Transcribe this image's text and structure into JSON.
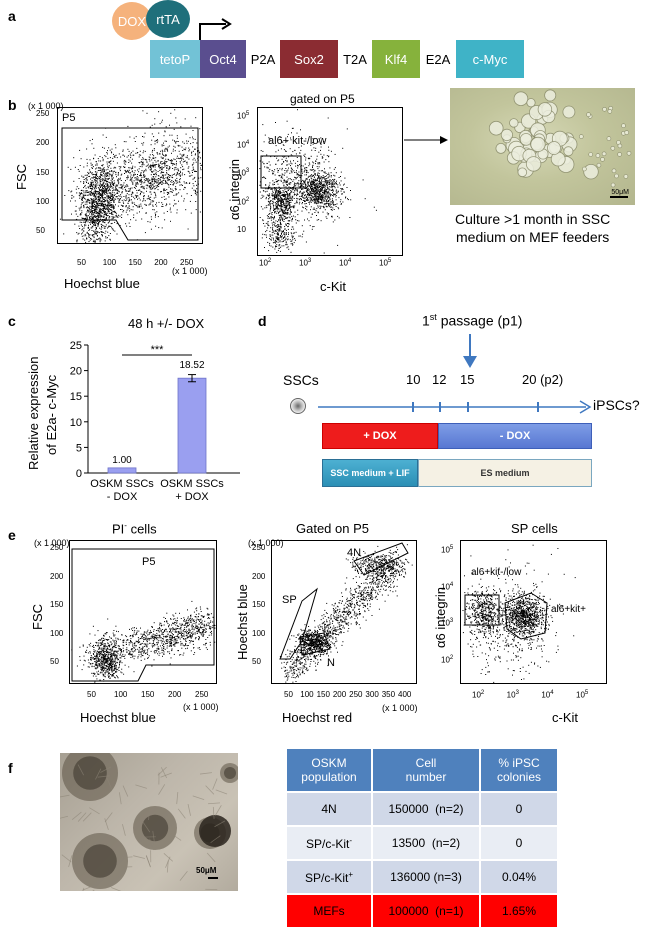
{
  "panels": {
    "a": "a",
    "b": "b",
    "c": "c",
    "d": "d",
    "e": "e",
    "f": "f"
  },
  "panel_a": {
    "dox": "DOX",
    "rttA": "rtTA",
    "genes": [
      {
        "label": "tetoP",
        "color": "#72c2d6"
      },
      {
        "label": "Oct4",
        "color": "#5a4e8f"
      },
      {
        "label": "P2A",
        "color": ""
      },
      {
        "label": "Sox2",
        "color": "#8b2c32"
      },
      {
        "label": "T2A",
        "color": ""
      },
      {
        "label": "Klf4",
        "color": "#86b23c"
      },
      {
        "label": "E2A",
        "color": ""
      },
      {
        "label": "c-Myc",
        "color": "#3fb3c7"
      }
    ],
    "colors": {
      "dox": "#f5b27c",
      "rttA": "#1f6f7b"
    }
  },
  "panel_b": {
    "plot1": {
      "gate": "P5",
      "ylabel": "FSC",
      "xlabel": "Hoechst blue",
      "yunit": "(x 1 000)",
      "xunit": "(x 1 000)",
      "yticks": [
        "250",
        "200",
        "150",
        "100",
        "50"
      ],
      "xticks": [
        "50",
        "100",
        "150",
        "200",
        "250"
      ]
    },
    "plot2": {
      "title": "gated on P5",
      "gate": "al6+ kit-/low",
      "ylabel": "α6 integrin",
      "xlabel": "c-Kit",
      "yticks": [
        "10",
        "10",
        "10",
        "10",
        "10"
      ],
      "yexp": [
        "5",
        "4",
        "3",
        "2",
        ""
      ],
      "xticks": [
        "10",
        "10",
        "10",
        "10"
      ],
      "xexp": [
        "2",
        "3",
        "4",
        "5"
      ]
    },
    "photo_scale": "50μM",
    "caption_line1": "Culture >1 month in SSC",
    "caption_line2": "medium on MEF feeders"
  },
  "panel_c": {
    "title": "48 h +/- DOX",
    "ylabel_line1": "Relative expression",
    "ylabel_line2": "of E2a- c-Myc",
    "significance": "***",
    "chart_data": {
      "type": "bar",
      "title": "48 h +/- DOX",
      "categories": [
        "OSKM SSCs - DOX",
        "OSKM SSCs + DOX"
      ],
      "category_lines": [
        [
          "OSKM SSCs",
          "- DOX"
        ],
        [
          "OSKM SSCs",
          "+ DOX"
        ]
      ],
      "values": [
        1.0,
        18.52
      ],
      "value_labels": [
        "1.00",
        "18.52"
      ],
      "ylabel": "Relative expression of E2a- c-Myc",
      "ylim": [
        0,
        25
      ],
      "yticks": [
        0,
        5,
        10,
        15,
        20,
        25
      ],
      "error": [
        0,
        0.7
      ],
      "bar_color": "#9a9ff0"
    }
  },
  "panel_d": {
    "passage_label": "passage (p1)",
    "passage_num": "1",
    "passage_sup": "st",
    "start": "SSCs",
    "end": "iPSCs?",
    "ticks": [
      "10",
      "12",
      "15",
      "20 (p2)"
    ],
    "plus_dox": "+ DOX",
    "minus_dox": "- DOX",
    "ssc_medium": "SSC medium + LIF",
    "es_medium": "ES medium"
  },
  "panel_e": {
    "plot1": {
      "title": "PI",
      "title_sup": "-",
      "title_rest": " cells",
      "gate": "P5",
      "ylabel": "FSC",
      "xlabel": "Hoechst blue",
      "unit": "(x 1 000)",
      "yticks": [
        "250",
        "200",
        "150",
        "100",
        "50"
      ],
      "xticks": [
        "50",
        "100",
        "150",
        "200",
        "250"
      ]
    },
    "plot2": {
      "title": "Gated on P5",
      "ylabel": "Hoechst blue",
      "xlabel": "Hoechst red",
      "unit": "(x 1 000)",
      "gates": [
        "4N",
        "SP",
        "N"
      ],
      "yticks": [
        "250",
        "200",
        "150",
        "100",
        "50"
      ],
      "xticks": [
        "50",
        "100",
        "150",
        "200",
        "250",
        "300",
        "350",
        "400"
      ]
    },
    "plot3": {
      "title": "SP cells",
      "ylabel": "α6 integrin",
      "xlabel": "c-Kit",
      "gates": [
        "al6+kit-/low",
        "al6+kit+"
      ],
      "yticks": [
        "10",
        "10",
        "10",
        "10"
      ],
      "yexp": [
        "5",
        "4",
        "3",
        "2"
      ],
      "xticks": [
        "10",
        "10",
        "10",
        "10"
      ],
      "xexp": [
        "2",
        "3",
        "4",
        "5"
      ]
    }
  },
  "panel_f": {
    "photo_scale": "50μM",
    "table": {
      "headers": [
        [
          "OSKM",
          "population"
        ],
        [
          "Cell",
          "number"
        ],
        [
          "% iPSC",
          "colonies"
        ]
      ],
      "rows": [
        {
          "pop": "4N",
          "pop_sup": "",
          "number": "150000  (n=2)",
          "pct": "0"
        },
        {
          "pop": "SP/c-Kit",
          "pop_sup": "-",
          "number": "13500  (n=2)",
          "pct": "0"
        },
        {
          "pop": "SP/c-Kit",
          "pop_sup": "+",
          "number": "136000 (n=3)",
          "pct": "0.04%"
        },
        {
          "pop": "MEFs",
          "pop_sup": "",
          "number": "100000  (n=1)",
          "pct": "1.65%"
        }
      ],
      "colors": {
        "header": "#4f81bd",
        "row_a": "#d0d8e8",
        "row_b": "#e9edf4",
        "highlight": "#ff0000"
      }
    }
  }
}
